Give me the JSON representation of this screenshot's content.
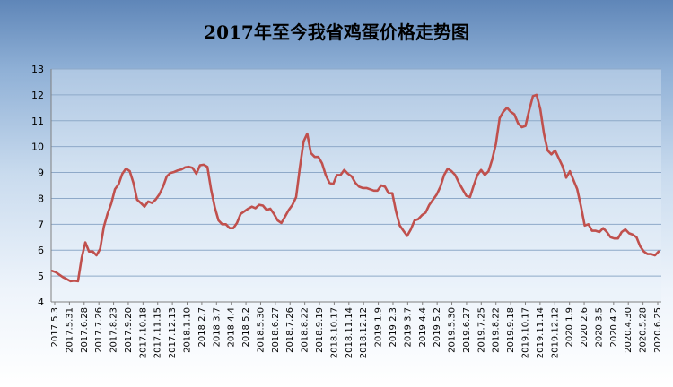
{
  "chart_data": {
    "type": "line",
    "title": "2017年至今我省鸡蛋价格走势图",
    "xlabel": "",
    "ylabel": "",
    "ylim": [
      4,
      13
    ],
    "yticks": [
      4,
      5,
      6,
      7,
      8,
      9,
      10,
      11,
      12,
      13
    ],
    "grid": true,
    "legend": "none",
    "line_color": "#c0504d",
    "x_tick_labels": [
      "2017.5.3",
      "2017.5.31",
      "2017.6.28",
      "2017.7.26",
      "2017.8.23",
      "2017.9.20",
      "2017.10.18",
      "2017.11.15",
      "2017.12.13",
      "2018.1.10",
      "2018.2.7",
      "2018.3.7",
      "2018.4.4",
      "2018.5.2",
      "2018.5.30",
      "2018.6.27",
      "2018.7.26",
      "2018.8.22",
      "2018.9.19",
      "2018.10.17",
      "2018.11.14",
      "2018.12.12",
      "2019.1.9",
      "2019.2.3",
      "2019.3.7",
      "2019.4.4",
      "2019.5.2",
      "2019.5.30",
      "2019.6.27",
      "2019.7.25",
      "2019.8.22",
      "2019.9.18",
      "2019.10.17",
      "2019.11.14",
      "2019.12.12",
      "2020.1.9",
      "2020.2.6",
      "2020.3.5",
      "2020.4.2",
      "2020.4.30",
      "2020.5.28",
      "2020.6.25"
    ],
    "values": [
      5.2,
      5.15,
      5.05,
      4.95,
      4.88,
      4.8,
      4.82,
      4.8,
      5.7,
      6.3,
      5.95,
      5.95,
      5.8,
      6.05,
      6.9,
      7.4,
      7.8,
      8.35,
      8.55,
      8.95,
      9.15,
      9.05,
      8.6,
      7.95,
      7.82,
      7.68,
      7.88,
      7.82,
      7.95,
      8.15,
      8.45,
      8.85,
      8.98,
      9.02,
      9.08,
      9.12,
      9.2,
      9.22,
      9.18,
      8.95,
      9.28,
      9.3,
      9.22,
      8.35,
      7.65,
      7.15,
      7.0,
      7.0,
      6.85,
      6.85,
      7.05,
      7.4,
      7.5,
      7.6,
      7.68,
      7.62,
      7.75,
      7.72,
      7.55,
      7.6,
      7.4,
      7.15,
      7.05,
      7.3,
      7.55,
      7.75,
      8.05,
      9.2,
      10.2,
      10.5,
      9.75,
      9.6,
      9.6,
      9.35,
      8.9,
      8.6,
      8.55,
      8.9,
      8.9,
      9.1,
      8.95,
      8.85,
      8.6,
      8.45,
      8.4,
      8.4,
      8.35,
      8.3,
      8.3,
      8.5,
      8.45,
      8.2,
      8.2,
      7.5,
      6.95,
      6.75,
      6.55,
      6.8,
      7.15,
      7.2,
      7.35,
      7.45,
      7.75,
      7.95,
      8.15,
      8.45,
      8.9,
      9.15,
      9.05,
      8.9,
      8.6,
      8.35,
      8.1,
      8.05,
      8.5,
      8.9,
      9.1,
      8.9,
      9.05,
      9.5,
      10.1,
      11.1,
      11.35,
      11.5,
      11.35,
      11.25,
      10.9,
      10.75,
      10.8,
      11.4,
      11.95,
      12.0,
      11.45,
      10.5,
      9.85,
      9.7,
      9.85,
      9.55,
      9.25,
      8.8,
      9.05,
      8.7,
      8.35,
      7.7,
      6.95,
      7.0,
      6.75,
      6.75,
      6.7,
      6.85,
      6.7,
      6.5,
      6.45,
      6.45,
      6.7,
      6.8,
      6.65,
      6.6,
      6.5,
      6.15,
      5.95,
      5.85,
      5.85,
      5.8,
      5.95
    ]
  }
}
